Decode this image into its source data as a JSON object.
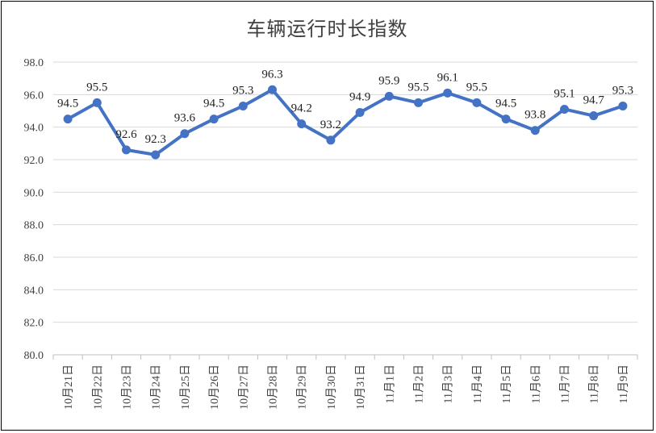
{
  "chart_data": {
    "type": "line",
    "title": "车辆运行时长指数",
    "xlabel": "",
    "ylabel": "",
    "ylim": [
      80,
      98
    ],
    "y_ticks": [
      "98.0",
      "96.0",
      "94.0",
      "92.0",
      "90.0",
      "88.0",
      "86.0",
      "84.0",
      "82.0",
      "80.0"
    ],
    "categories": [
      "10月21日",
      "10月22日",
      "10月23日",
      "10月24日",
      "10月25日",
      "10月26日",
      "10月27日",
      "10月28日",
      "10月29日",
      "10月30日",
      "10月31日",
      "11月1日",
      "11月2日",
      "11月3日",
      "11月4日",
      "11月5日",
      "11月6日",
      "11月7日",
      "11月8日",
      "11月9日"
    ],
    "series": [
      {
        "values": [
          94.5,
          95.5,
          92.6,
          92.3,
          93.6,
          94.5,
          95.3,
          96.3,
          94.2,
          93.2,
          94.9,
          95.9,
          95.5,
          96.1,
          95.5,
          94.5,
          93.8,
          95.1,
          94.7,
          95.3
        ],
        "labels": [
          "94.5",
          "95.5",
          "92.6",
          "92.3",
          "93.6",
          "94.5",
          "95.3",
          "96.3",
          "94.2",
          "93.2",
          "94.9",
          "95.9",
          "95.5",
          "96.1",
          "95.5",
          "94.5",
          "93.8",
          "95.1",
          "94.7",
          "95.3"
        ],
        "color": "#4472C4"
      }
    ],
    "grid": true,
    "legend": "none"
  }
}
